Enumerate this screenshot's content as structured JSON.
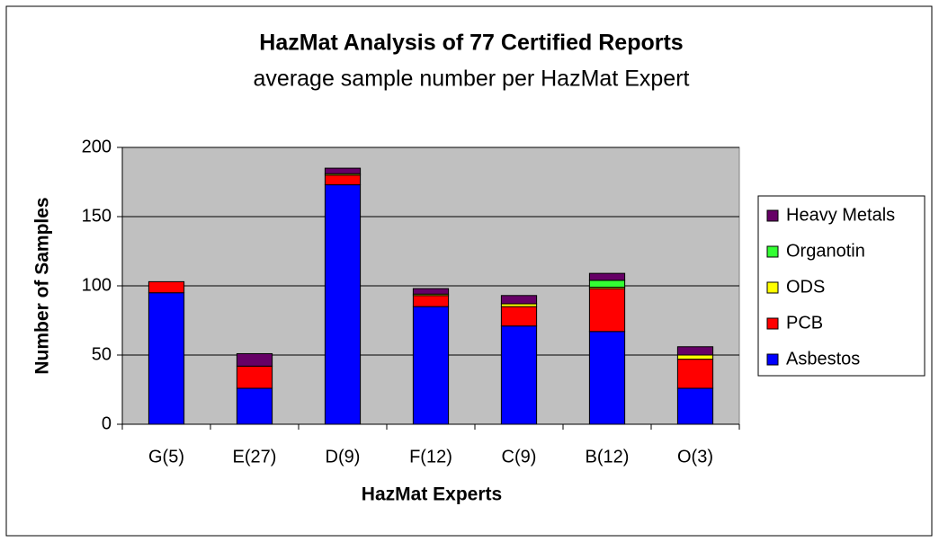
{
  "chart_data": {
    "type": "stacked_bar",
    "title": "HazMat Analysis of 77 Certified Reports",
    "subtitle": "average sample number per HazMat Expert",
    "x_label": "HazMat Experts",
    "y_label": "Number of Samples",
    "categories": [
      "G(5)",
      "E(27)",
      "D(9)",
      "F(12)",
      "C(9)",
      "B(12)",
      "O(3)"
    ],
    "series": [
      {
        "name": "Asbestos",
        "color": "#0000ff",
        "values": [
          95,
          26,
          173,
          85,
          71,
          67,
          26
        ]
      },
      {
        "name": "PCB",
        "color": "#ff0000",
        "values": [
          8,
          16,
          7,
          8,
          14,
          31,
          21
        ]
      },
      {
        "name": "ODS",
        "color": "#ffff00",
        "values": [
          0,
          0,
          1,
          1,
          2,
          1,
          3
        ]
      },
      {
        "name": "Organotin",
        "color": "#33ff33",
        "values": [
          0,
          0,
          0,
          0,
          0,
          5,
          0
        ]
      },
      {
        "name": "Heavy Metals",
        "color": "#660066",
        "values": [
          0,
          9,
          4,
          4,
          6,
          5,
          6
        ]
      }
    ],
    "ylim": [
      0,
      200
    ],
    "yticks": [
      0,
      50,
      100,
      150,
      200
    ],
    "grid": true,
    "legend": "right"
  }
}
